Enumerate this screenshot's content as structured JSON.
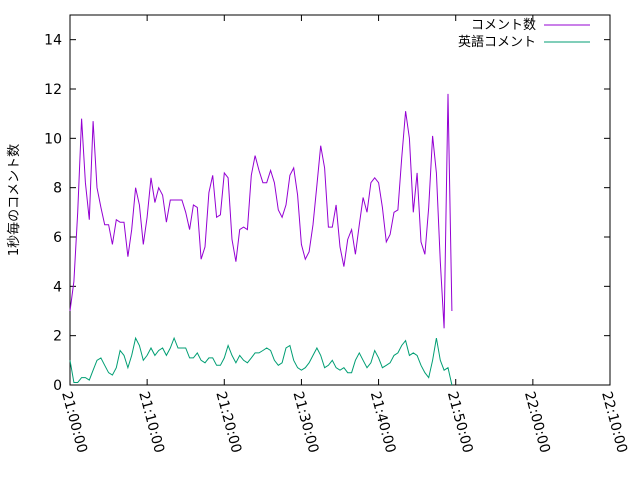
{
  "chart_data": {
    "type": "line",
    "title": "",
    "xlabel": "",
    "ylabel": "1秒毎のコメント数",
    "xlim_minutes": [
      0,
      70
    ],
    "ylim": [
      0,
      15
    ],
    "x_ticks": [
      "21:00:00",
      "21:10:00",
      "21:20:00",
      "21:30:00",
      "21:40:00",
      "21:50:00",
      "22:00:00",
      "22:10:00"
    ],
    "y_ticks": [
      0,
      2,
      4,
      6,
      8,
      10,
      12,
      14
    ],
    "grid": false,
    "legend_position": "top-right",
    "x_step_minutes": 0.5,
    "x_start_minutes": 0,
    "series": [
      {
        "name": "コメント数",
        "color": "#9400d3",
        "values": [
          3.0,
          4.2,
          7.0,
          10.8,
          8.2,
          6.7,
          10.7,
          8.0,
          7.2,
          6.5,
          6.5,
          5.7,
          6.7,
          6.6,
          6.6,
          5.2,
          6.3,
          8.0,
          7.3,
          5.7,
          6.8,
          8.4,
          7.4,
          8.0,
          7.7,
          6.6,
          7.5,
          7.5,
          7.5,
          7.5,
          7.0,
          6.3,
          7.3,
          7.2,
          5.1,
          5.6,
          7.8,
          8.5,
          6.8,
          6.9,
          8.6,
          8.4,
          5.9,
          5.0,
          6.3,
          6.4,
          6.3,
          8.5,
          9.3,
          8.7,
          8.2,
          8.2,
          8.7,
          8.2,
          7.1,
          6.8,
          7.3,
          8.5,
          8.8,
          7.7,
          5.7,
          5.1,
          5.4,
          6.5,
          8.1,
          9.7,
          8.8,
          6.4,
          6.4,
          7.3,
          5.6,
          4.8,
          5.9,
          6.3,
          5.3,
          6.5,
          7.6,
          7.0,
          8.2,
          8.4,
          8.2,
          7.2,
          5.8,
          6.1,
          7.0,
          7.1,
          9.2,
          11.1,
          10.0,
          7.0,
          8.6,
          5.8,
          5.3,
          7.2,
          10.1,
          8.6,
          5.0,
          2.3,
          11.8,
          3.0
        ]
      },
      {
        "name": "英語コメント",
        "color": "#009e73",
        "values": [
          1.0,
          0.1,
          0.1,
          0.3,
          0.3,
          0.2,
          0.6,
          1.0,
          1.1,
          0.8,
          0.5,
          0.4,
          0.7,
          1.4,
          1.2,
          0.7,
          1.2,
          1.9,
          1.6,
          1.0,
          1.2,
          1.5,
          1.2,
          1.4,
          1.5,
          1.2,
          1.5,
          1.9,
          1.5,
          1.5,
          1.5,
          1.1,
          1.1,
          1.3,
          1.0,
          0.9,
          1.1,
          1.1,
          0.8,
          0.8,
          1.1,
          1.6,
          1.2,
          0.9,
          1.2,
          1.0,
          0.9,
          1.1,
          1.3,
          1.3,
          1.4,
          1.5,
          1.4,
          1.0,
          0.8,
          0.9,
          1.5,
          1.6,
          1.0,
          0.7,
          0.6,
          0.7,
          0.9,
          1.2,
          1.5,
          1.2,
          0.7,
          0.8,
          1.0,
          0.7,
          0.6,
          0.7,
          0.5,
          0.5,
          1.0,
          1.3,
          1.0,
          0.7,
          0.9,
          1.4,
          1.1,
          0.7,
          0.8,
          0.9,
          1.2,
          1.3,
          1.6,
          1.8,
          1.2,
          1.3,
          1.2,
          0.8,
          0.5,
          0.3,
          1.0,
          1.9,
          1.0,
          0.6,
          0.7,
          0.0
        ]
      }
    ]
  }
}
